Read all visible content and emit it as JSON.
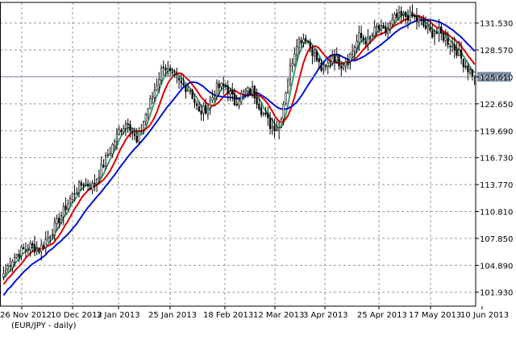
{
  "caption": "(EUR/JPY - daily)",
  "colors": {
    "background": "#ffffff",
    "grid": "#9a9a9a",
    "frame": "#000000",
    "bull_body": "#ffffff",
    "bear_body": "#000000",
    "candle_outline": "#000000",
    "current_price_line": "#7a8ea6",
    "current_price_box": "#7a8ea6",
    "current_price_text": "#ffffff"
  },
  "chart_data": {
    "type": "candlestick",
    "symbol": "EUR/JPY",
    "timeframe": "daily",
    "grid": true,
    "ylim": [
      100.4,
      133.8
    ],
    "y_ticks": [
      "131.530",
      "128.570",
      "125.610",
      "122.650",
      "119.690",
      "116.730",
      "113.770",
      "110.810",
      "107.850",
      "104.890",
      "101.930"
    ],
    "x_ticks": [
      "26 Nov 2012",
      "10 Dec 2012",
      "3 Jan 2013",
      "25 Jan 2013",
      "18 Feb 2013",
      "12 Mar 2013",
      "3 Apr 2013",
      "25 Apr 2013",
      "17 May 2013",
      "10 Jun 2013"
    ],
    "current_price": "125.624",
    "close_anchors": [
      [
        0,
        104.0
      ],
      [
        4,
        105.6
      ],
      [
        8,
        106.5
      ],
      [
        12,
        107.0
      ],
      [
        16,
        106.6
      ],
      [
        20,
        108.0
      ],
      [
        24,
        109.5
      ],
      [
        28,
        111.3
      ],
      [
        32,
        113.0
      ],
      [
        36,
        114.0
      ],
      [
        40,
        113.6
      ],
      [
        44,
        115.5
      ],
      [
        48,
        117.5
      ],
      [
        52,
        119.7
      ],
      [
        56,
        120.8
      ],
      [
        60,
        118.3
      ],
      [
        64,
        121.5
      ],
      [
        68,
        124.2
      ],
      [
        72,
        127.0
      ],
      [
        76,
        125.5
      ],
      [
        80,
        124.8
      ],
      [
        84,
        124.2
      ],
      [
        88,
        121.6
      ],
      [
        92,
        122.3
      ],
      [
        96,
        124.4
      ],
      [
        100,
        124.6
      ],
      [
        104,
        122.8
      ],
      [
        108,
        123.8
      ],
      [
        112,
        124.2
      ],
      [
        116,
        122.0
      ],
      [
        120,
        120.3
      ],
      [
        124,
        120.0
      ],
      [
        128,
        125.5
      ],
      [
        132,
        129.5
      ],
      [
        136,
        130.0
      ],
      [
        140,
        128.0
      ],
      [
        144,
        126.0
      ],
      [
        148,
        128.0
      ],
      [
        152,
        127.0
      ],
      [
        156,
        128.0
      ],
      [
        160,
        130.0
      ],
      [
        164,
        129.5
      ],
      [
        168,
        131.0
      ],
      [
        172,
        130.5
      ],
      [
        176,
        132.0
      ],
      [
        180,
        132.3
      ],
      [
        184,
        132.3
      ],
      [
        188,
        131.5
      ],
      [
        192,
        130.5
      ],
      [
        196,
        130.5
      ],
      [
        200,
        129.5
      ],
      [
        204,
        128.5
      ],
      [
        208,
        126.8
      ],
      [
        212,
        125.6
      ]
    ],
    "series": [
      {
        "type": "ma",
        "period": 5,
        "color": "#3c9c6c"
      },
      {
        "type": "ma",
        "period": 10,
        "color": "#e00000"
      },
      {
        "type": "ma",
        "period": 20,
        "color": "#0014d0"
      }
    ]
  }
}
